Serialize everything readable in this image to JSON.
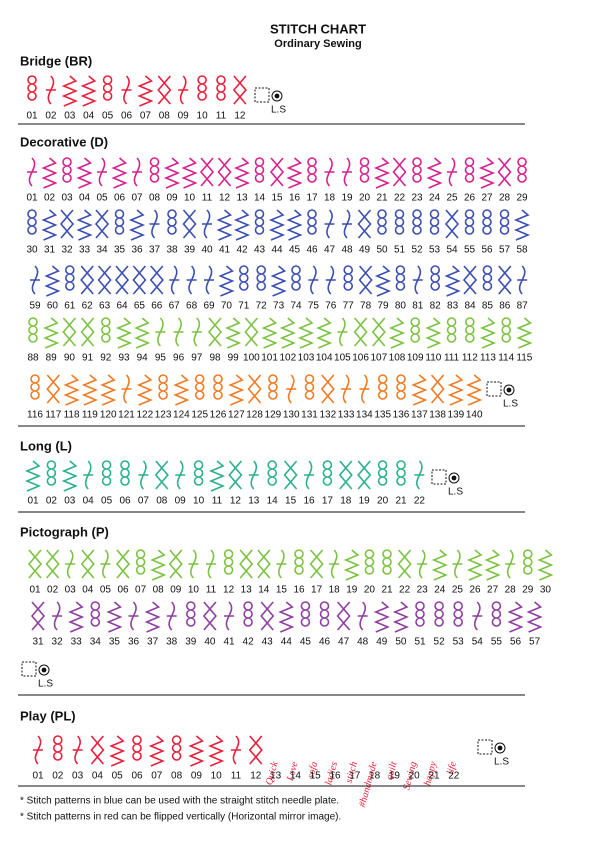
{
  "header": {
    "title": "STITCH CHART",
    "subtitle": "Ordinary Sewing"
  },
  "sections": [
    {
      "title": "Bridge (BR)",
      "ls": "L.S",
      "rows": [
        {
          "color": "#e8203c",
          "labels": [
            "01",
            "02",
            "03",
            "04",
            "05",
            "06",
            "07",
            "08",
            "09",
            "10",
            "11",
            "12"
          ]
        }
      ]
    },
    {
      "title": "Decorative (D)",
      "ls": "L.S",
      "rows": [
        {
          "color": "#d6218f",
          "labels": [
            "01",
            "02",
            "03",
            "04",
            "05",
            "06",
            "07",
            "08",
            "09",
            "10",
            "11",
            "12",
            "13",
            "14",
            "15",
            "16",
            "17",
            "18",
            "19",
            "20",
            "21",
            "22",
            "23",
            "24",
            "25",
            "26",
            "27",
            "28",
            "29"
          ]
        },
        {
          "color": "#3b4fb0",
          "labels": [
            "30",
            "31",
            "32",
            "33",
            "34",
            "35",
            "36",
            "37",
            "38",
            "39",
            "40",
            "41",
            "42",
            "43",
            "44",
            "45",
            "46",
            "47",
            "48",
            "49",
            "50",
            "51",
            "52",
            "53",
            "54",
            "55",
            "56",
            "57",
            "58"
          ]
        },
        {
          "color": "#3b4fb0",
          "labels": [
            "59",
            "60",
            "61",
            "62",
            "63",
            "64",
            "65",
            "66",
            "67",
            "68",
            "69",
            "70",
            "71",
            "72",
            "73",
            "74",
            "75",
            "76",
            "77",
            "78",
            "79",
            "80",
            "81",
            "82",
            "83",
            "84",
            "85",
            "86",
            "87"
          ]
        },
        {
          "color": "#7cc242",
          "labels": [
            "88",
            "89",
            "90",
            "91",
            "92",
            "93",
            "94",
            "95",
            "96",
            "97",
            "98",
            "99",
            "100",
            "101",
            "102",
            "103",
            "104",
            "105",
            "106",
            "107",
            "108",
            "109",
            "110",
            "111",
            "112",
            "113",
            "114",
            "115"
          ]
        },
        {
          "color": "#f27a22",
          "labels": [
            "116",
            "117",
            "118",
            "119",
            "120",
            "121",
            "122",
            "123",
            "124",
            "125",
            "126",
            "127",
            "128",
            "129",
            "130",
            "131",
            "132",
            "133",
            "134",
            "135",
            "136",
            "137",
            "138",
            "139",
            "140"
          ]
        }
      ]
    },
    {
      "title": "Long (L)",
      "ls": "L.S",
      "rows": [
        {
          "color": "#2bb08f",
          "labels": [
            "01",
            "02",
            "03",
            "04",
            "05",
            "06",
            "07",
            "08",
            "09",
            "10",
            "11",
            "12",
            "13",
            "14",
            "15",
            "16",
            "17",
            "18",
            "19",
            "20",
            "21",
            "22"
          ]
        }
      ]
    },
    {
      "title": "Pictograph (P)",
      "ls": "L.S",
      "rows": [
        {
          "color": "#7cc242",
          "labels": [
            "01",
            "02",
            "03",
            "04",
            "05",
            "06",
            "07",
            "08",
            "09",
            "10",
            "11",
            "12",
            "13",
            "14",
            "15",
            "16",
            "17",
            "18",
            "19",
            "20",
            "21",
            "22",
            "23",
            "24",
            "25",
            "26",
            "27",
            "28",
            "29",
            "30"
          ]
        },
        {
          "color": "#8e3fa0",
          "labels": [
            "31",
            "32",
            "33",
            "34",
            "35",
            "36",
            "37",
            "38",
            "39",
            "40",
            "41",
            "42",
            "43",
            "44",
            "45",
            "46",
            "47",
            "48",
            "49",
            "50",
            "51",
            "52",
            "53",
            "54",
            "55",
            "56",
            "57"
          ]
        }
      ]
    },
    {
      "title": "Play (PL)",
      "ls": "L.S",
      "rows": [
        {
          "color": "#e8203c",
          "labels": [
            "01",
            "02",
            "03",
            "04",
            "05",
            "06",
            "07",
            "08",
            "09",
            "10",
            "11",
            "12",
            "13",
            "14",
            "15",
            "16",
            "17",
            "18",
            "19",
            "20",
            "21",
            "22"
          ],
          "words": [
            null,
            null,
            null,
            null,
            null,
            null,
            null,
            null,
            null,
            null,
            null,
            null,
            "Quick",
            "Love",
            "sofa",
            "ladies",
            "stitch",
            "#handmade",
            "quilt",
            "Sewing",
            "happy",
            "life"
          ]
        }
      ]
    }
  ],
  "footnotes": [
    "*  Stitch patterns in blue can be used with the straight stitch needle plate.",
    "*  Stitch patterns in red can be flipped vertically (Horizontal mirror image)."
  ]
}
